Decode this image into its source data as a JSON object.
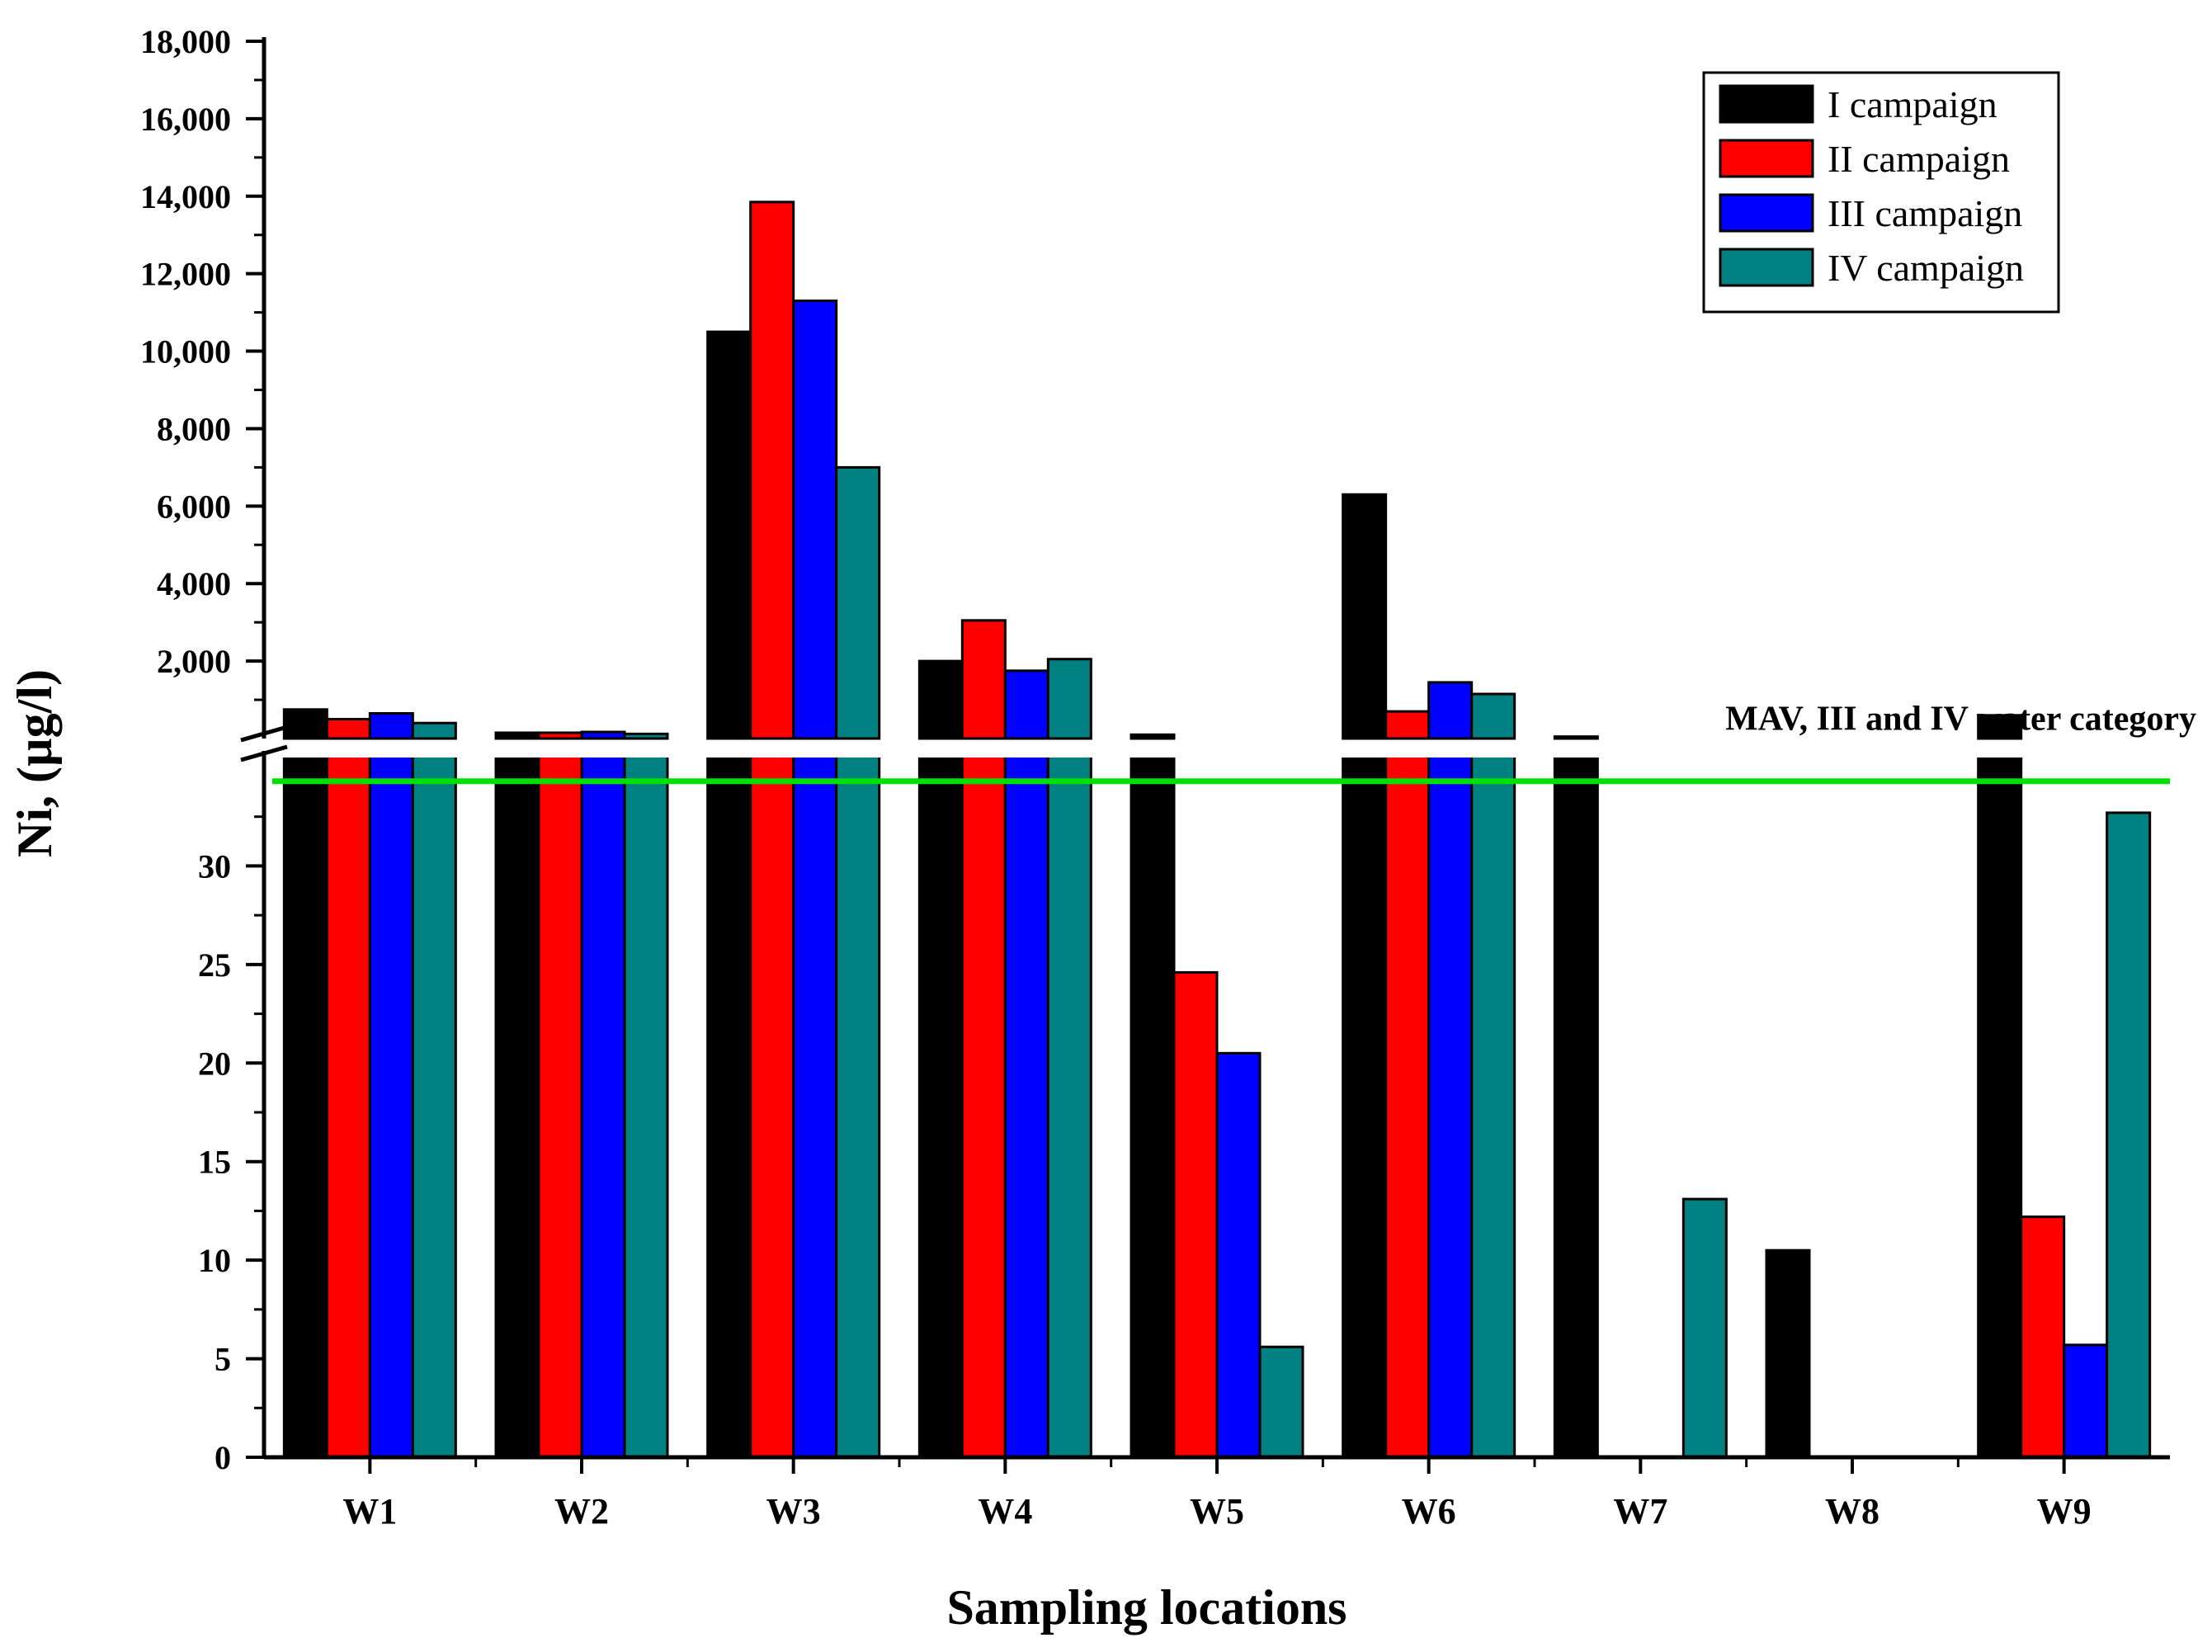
{
  "chart_data": {
    "type": "bar",
    "xlabel": "Sampling locations",
    "ylabel": "Ni, (µg/l)",
    "categories": [
      "W1",
      "W2",
      "W3",
      "W4",
      "W5",
      "W6",
      "W7",
      "W8",
      "W9"
    ],
    "axis_break": {
      "lower_ylim": [
        0,
        35
      ],
      "upper_ylim": [
        0,
        18000
      ],
      "lower_ticks": [
        0,
        5,
        10,
        15,
        20,
        25,
        30
      ],
      "upper_ticks": [
        2000,
        4000,
        6000,
        8000,
        10000,
        12000,
        14000,
        16000,
        18000
      ],
      "upper_tick_labels": [
        "2,000",
        "4,000",
        "6,000",
        "8,000",
        "10,000",
        "12,000",
        "14,000",
        "16,000",
        "18,000"
      ]
    },
    "series": [
      {
        "name": "I campaign",
        "color": "#000000",
        "values": [
          750,
          150,
          10500,
          2000,
          100,
          6300,
          50,
          10.5,
          600
        ]
      },
      {
        "name": "II campaign",
        "color": "#ff0000",
        "values": [
          500,
          150,
          13850,
          3050,
          24.6,
          700,
          0,
          0,
          12.2
        ]
      },
      {
        "name": "III campaign",
        "color": "#0000ff",
        "values": [
          650,
          170,
          11300,
          1750,
          20.5,
          1450,
          0,
          0,
          5.7
        ]
      },
      {
        "name": "IV campaign",
        "color": "#008080",
        "values": [
          400,
          120,
          7000,
          2050,
          5.6,
          1150,
          13.1,
          0,
          32.7
        ]
      }
    ],
    "reference_line": {
      "label": "MAV, III and IV water category",
      "value": 34.3,
      "color": "#00e000"
    },
    "legend_position": "top-right",
    "grid": false
  }
}
